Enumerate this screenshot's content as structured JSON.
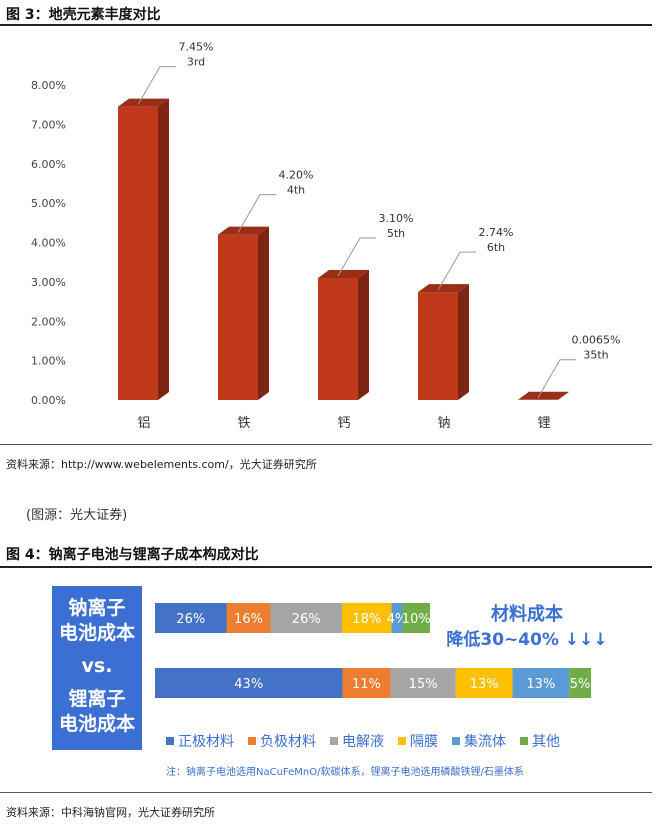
{
  "figure3": {
    "title": "图 3：地壳元素丰度对比",
    "source": "资料来源：http://www.webelements.com/，光大证券研究所",
    "caption": "(图源：光大证券)"
  },
  "figure4": {
    "title": "图 4：钠离子电池与锂离子成本构成对比",
    "source": "资料来源：中科海钠官网，光大证券研究所",
    "left_box": {
      "line1": "钠离子",
      "line2": "电池成本",
      "vs": "vs.",
      "line3": "锂离子",
      "line4": "电池成本"
    },
    "headline": {
      "line1": "材料成本",
      "line2": "降低30~40% ↓↓↓"
    },
    "note": "注：钠离子电池选用NaCuFeMnO/软碳体系，锂离子电池选用磷酸铁锂/石墨体系"
  },
  "chart_data": [
    {
      "type": "bar",
      "categories": [
        "铝",
        "铁",
        "钙",
        "钠",
        "锂"
      ],
      "values": [
        7.45,
        4.2,
        3.1,
        2.74,
        0.0065
      ],
      "value_labels": [
        "7.45%",
        "4.20%",
        "3.10%",
        "2.74%",
        "0.0065%"
      ],
      "rank_labels": [
        "3rd",
        "4th",
        "5th",
        "6th",
        "35th"
      ],
      "yticks": [
        "0.00%",
        "1.00%",
        "2.00%",
        "3.00%",
        "4.00%",
        "5.00%",
        "6.00%",
        "7.00%",
        "8.00%"
      ],
      "ylim": [
        0,
        8
      ],
      "bar_color": "#c0391b",
      "title": "",
      "xlabel": "",
      "ylabel": ""
    },
    {
      "type": "bar",
      "stacked": true,
      "orientation": "horizontal",
      "categories": [
        "钠离子电池成本",
        "锂离子电池成本"
      ],
      "series": [
        {
          "name": "正极材料",
          "color": "#4472c4",
          "values": [
            26,
            43
          ],
          "labels": [
            "26%",
            "43%"
          ]
        },
        {
          "name": "负极材料",
          "color": "#ed7d31",
          "values": [
            16,
            11
          ],
          "labels": [
            "16%",
            "11%"
          ]
        },
        {
          "name": "电解液",
          "color": "#a5a5a5",
          "values": [
            26,
            15
          ],
          "labels": [
            "26%",
            "15%"
          ]
        },
        {
          "name": "隔膜",
          "color": "#ffc000",
          "values": [
            18,
            13
          ],
          "labels": [
            "18%",
            "13%"
          ]
        },
        {
          "name": "集流体",
          "color": "#5b9bd5",
          "values": [
            4,
            13
          ],
          "labels": [
            "4%",
            "13%"
          ]
        },
        {
          "name": "其他",
          "color": "#70ad47",
          "values": [
            10,
            5
          ],
          "labels": [
            "10%",
            "5%"
          ]
        }
      ],
      "legend_position": "bottom"
    }
  ]
}
